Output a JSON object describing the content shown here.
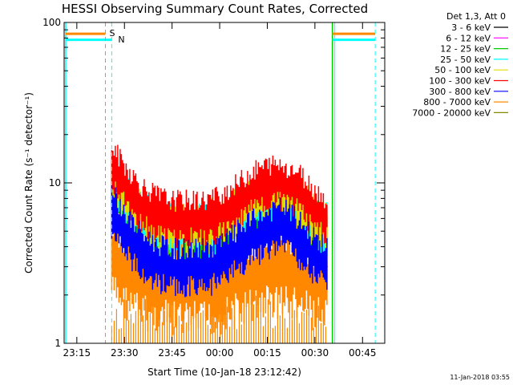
{
  "chart_data": {
    "type": "line",
    "title": "HESSI Observing Summary Count Rates, Corrected",
    "xlabel": "Start Time (10-Jan-18 23:12:42)",
    "ylabel": "Corrected Count Rate (s⁻¹ detector⁻¹)",
    "xscale": "time",
    "xlim": [
      "2018-01-10 23:11",
      "2018-01-11 00:52"
    ],
    "yscale": "log",
    "ylim": [
      1,
      100
    ],
    "x_ticks": [
      "23:15",
      "23:30",
      "23:45",
      "00:00",
      "00:15",
      "00:30",
      "00:45"
    ],
    "y_ticks": [
      "1",
      "10",
      "100"
    ],
    "grid": false,
    "legend_title": "Det 1,3, Att 0",
    "legend_placement": "right",
    "legend": [
      {
        "name": "3 - 6 keV",
        "color": "#000000"
      },
      {
        "name": "6 - 12 keV",
        "color": "#ff00ff"
      },
      {
        "name": "12 - 25 keV",
        "color": "#00cc00"
      },
      {
        "name": "25 - 50 keV",
        "color": "#00ffff"
      },
      {
        "name": "50 - 100 keV",
        "color": "#dddd00"
      },
      {
        "name": "100 - 300 keV",
        "color": "#ff0000"
      },
      {
        "name": "300 - 800 keV",
        "color": "#0000ff"
      },
      {
        "name": "800 - 7000 keV",
        "color": "#ff8800"
      },
      {
        "name": "7000 - 20000 keV",
        "color": "#888800"
      }
    ],
    "x_time_order": [
      "23:15",
      "23:30",
      "23:45",
      "00:00",
      "00:15",
      "00:30",
      "00:45"
    ],
    "data_window": [
      "23:26",
      "00:35"
    ],
    "series": [
      {
        "name": "100 - 300 keV",
        "color": "#ff0000",
        "x": [
          "23:26",
          "23:30",
          "23:35",
          "23:40",
          "23:45",
          "23:50",
          "23:55",
          "00:00",
          "00:05",
          "00:10",
          "00:15",
          "00:20",
          "00:25",
          "00:30",
          "00:34"
        ],
        "values": [
          13,
          10,
          7.5,
          6.5,
          6,
          6,
          6,
          6.5,
          7.5,
          9,
          10,
          10,
          9,
          7,
          6
        ]
      },
      {
        "name": "50 - 100 keV",
        "color": "#dddd00",
        "x": [
          "23:26",
          "23:30",
          "23:35",
          "23:40",
          "23:45",
          "23:50",
          "23:55",
          "00:00",
          "00:05",
          "00:10",
          "00:15",
          "00:20",
          "00:25",
          "00:30",
          "00:34"
        ],
        "values": [
          10,
          8,
          6.2,
          5.5,
          5.2,
          5.2,
          5.2,
          5.5,
          6.2,
          7.5,
          8.2,
          8.5,
          7.5,
          6,
          5.2
        ]
      },
      {
        "name": "25 - 50 keV",
        "color": "#00ffff",
        "x": [
          "23:26",
          "23:30",
          "23:35",
          "23:40",
          "23:45",
          "23:50",
          "23:55",
          "00:00",
          "00:05",
          "00:10",
          "00:15",
          "00:20",
          "00:25",
          "00:30",
          "00:34"
        ],
        "values": [
          9,
          7.5,
          6,
          5.3,
          5,
          5,
          5,
          5.3,
          6,
          7,
          7.5,
          7.8,
          7,
          5.6,
          5
        ]
      },
      {
        "name": "12 - 25 keV",
        "color": "#00cc00",
        "x": [
          "23:26",
          "23:30",
          "23:35",
          "23:40",
          "23:45",
          "23:50",
          "23:55",
          "00:00",
          "00:05",
          "00:10",
          "00:15",
          "00:20",
          "00:25",
          "00:30",
          "00:34"
        ],
        "values": [
          8.5,
          7,
          5.7,
          5,
          4.8,
          4.8,
          4.8,
          5,
          5.7,
          6.6,
          7.2,
          7.4,
          6.6,
          5.3,
          4.8
        ]
      },
      {
        "name": "300 - 800 keV",
        "color": "#0000ff",
        "x": [
          "23:26",
          "23:30",
          "23:35",
          "23:40",
          "23:45",
          "23:50",
          "23:55",
          "00:00",
          "00:05",
          "00:10",
          "00:15",
          "00:20",
          "00:25",
          "00:30",
          "00:34"
        ],
        "values": [
          7,
          5,
          3.8,
          3.2,
          3,
          3,
          3,
          3.2,
          3.8,
          4.5,
          5,
          5.5,
          4.5,
          3.5,
          3
        ]
      },
      {
        "name": "800 - 7000 keV",
        "color": "#ff8800",
        "x": [
          "23:26",
          "23:30",
          "23:35",
          "23:40",
          "23:45",
          "23:50",
          "23:55",
          "00:00",
          "00:05",
          "00:10",
          "00:15",
          "00:20",
          "00:25",
          "00:30",
          "00:34"
        ],
        "values": [
          3.5,
          3,
          2.6,
          2.4,
          2.3,
          2.3,
          2.3,
          2.4,
          2.6,
          2.8,
          3,
          3,
          2.8,
          2.5,
          2.3
        ]
      }
    ],
    "flags": [
      {
        "label": "S",
        "color": "#ff8800"
      },
      {
        "label": "N",
        "color": "#00ffff"
      }
    ],
    "footer_date": "11-Jan-2018 03:55"
  }
}
